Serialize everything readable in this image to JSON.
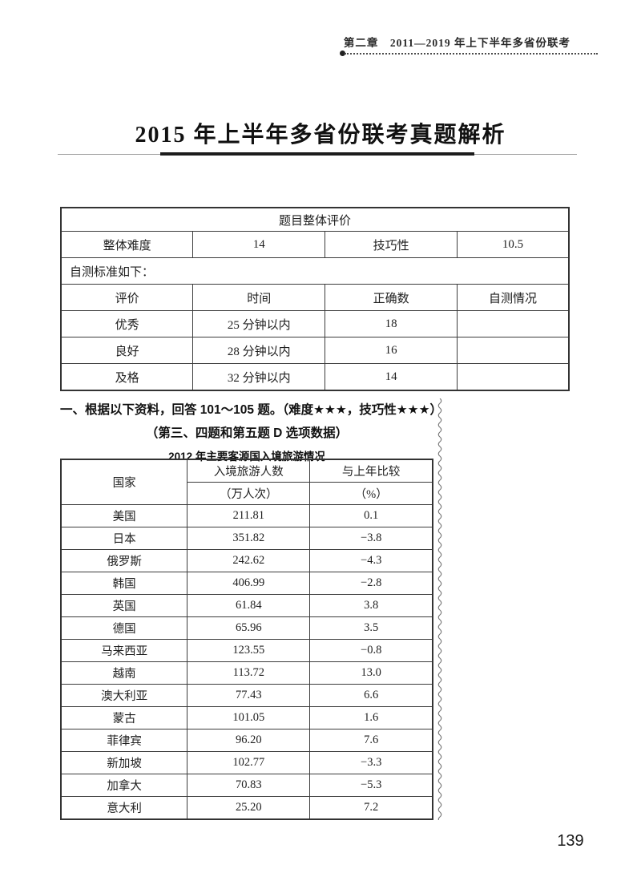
{
  "header": {
    "chapter": "第二章　2011—2019 年上下半年多省份联考"
  },
  "title": "2015 年上半年多省份联考真题解析",
  "evaluation_table": {
    "title": "题目整体评价",
    "overall_difficulty_label": "整体难度",
    "overall_difficulty_value": "14",
    "skill_label": "技巧性",
    "skill_value": "10.5",
    "self_test_note": "自测标准如下：",
    "columns": [
      "评价",
      "时间",
      "正确数",
      "自测情况"
    ],
    "rows": [
      {
        "rating": "优秀",
        "time": "25 分钟以内",
        "correct": "18",
        "self": ""
      },
      {
        "rating": "良好",
        "time": "28 分钟以内",
        "correct": "16",
        "self": ""
      },
      {
        "rating": "及格",
        "time": "32 分钟以内",
        "correct": "14",
        "self": ""
      }
    ]
  },
  "question": {
    "intro": "一、根据以下资料，回答 101～105 题。（难度★★★，技巧性★★★）",
    "note": "（第三、四题和第五题 D 选项数据）",
    "table_title": "2012 年主要客源国入境旅游情况"
  },
  "tourism_table": {
    "col_country": "国家",
    "col_visitors": "入境旅游人数",
    "col_visitors_unit": "（万人次）",
    "col_change": "与上年比较",
    "col_change_unit": "（%）",
    "rows": [
      {
        "country": "美国",
        "visitors": "211.81",
        "change": "0.1"
      },
      {
        "country": "日本",
        "visitors": "351.82",
        "change": "−3.8"
      },
      {
        "country": "俄罗斯",
        "visitors": "242.62",
        "change": "−4.3"
      },
      {
        "country": "韩国",
        "visitors": "406.99",
        "change": "−2.8"
      },
      {
        "country": "英国",
        "visitors": "61.84",
        "change": "3.8"
      },
      {
        "country": "德国",
        "visitors": "65.96",
        "change": "3.5"
      },
      {
        "country": "马来西亚",
        "visitors": "123.55",
        "change": "−0.8"
      },
      {
        "country": "越南",
        "visitors": "113.72",
        "change": "13.0"
      },
      {
        "country": "澳大利亚",
        "visitors": "77.43",
        "change": "6.6"
      },
      {
        "country": "蒙古",
        "visitors": "101.05",
        "change": "1.6"
      },
      {
        "country": "菲律宾",
        "visitors": "96.20",
        "change": "7.6"
      },
      {
        "country": "新加坡",
        "visitors": "102.77",
        "change": "−3.3"
      },
      {
        "country": "加拿大",
        "visitors": "70.83",
        "change": "−5.3"
      },
      {
        "country": "意大利",
        "visitors": "25.20",
        "change": "7.2"
      }
    ]
  },
  "page_number": "139"
}
